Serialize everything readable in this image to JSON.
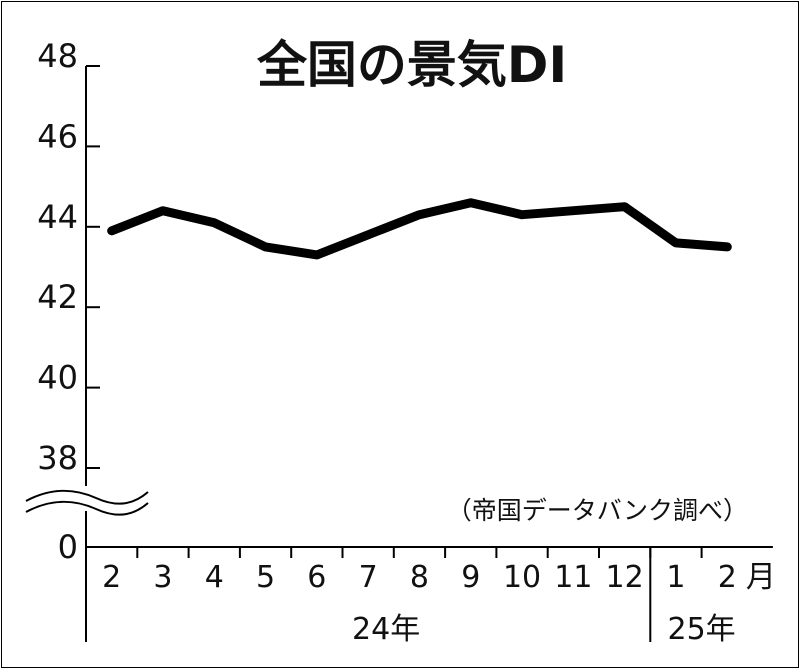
{
  "chart_data": {
    "type": "line",
    "title": "全国の景気DI",
    "source_note": "（帝国データバンク調べ）",
    "ylim": [
      38,
      48
    ],
    "y_ticks": [
      "48",
      "46",
      "44",
      "42",
      "40",
      "38"
    ],
    "y_zero_label": "0",
    "y_break": true,
    "grid": false,
    "categories": [
      "2",
      "3",
      "4",
      "5",
      "6",
      "7",
      "8",
      "9",
      "10",
      "11",
      "12",
      "1",
      "2"
    ],
    "month_unit": "月",
    "year_groups": [
      {
        "label": "24年",
        "start": 0,
        "end": 10
      },
      {
        "label": "25年",
        "start": 11,
        "end": 12
      }
    ],
    "series": [
      {
        "values": [
          43.9,
          44.4,
          44.1,
          43.5,
          43.3,
          43.8,
          44.3,
          44.6,
          44.3,
          44.4,
          44.5,
          43.6,
          43.5
        ]
      }
    ],
    "line_color": "#000000"
  }
}
